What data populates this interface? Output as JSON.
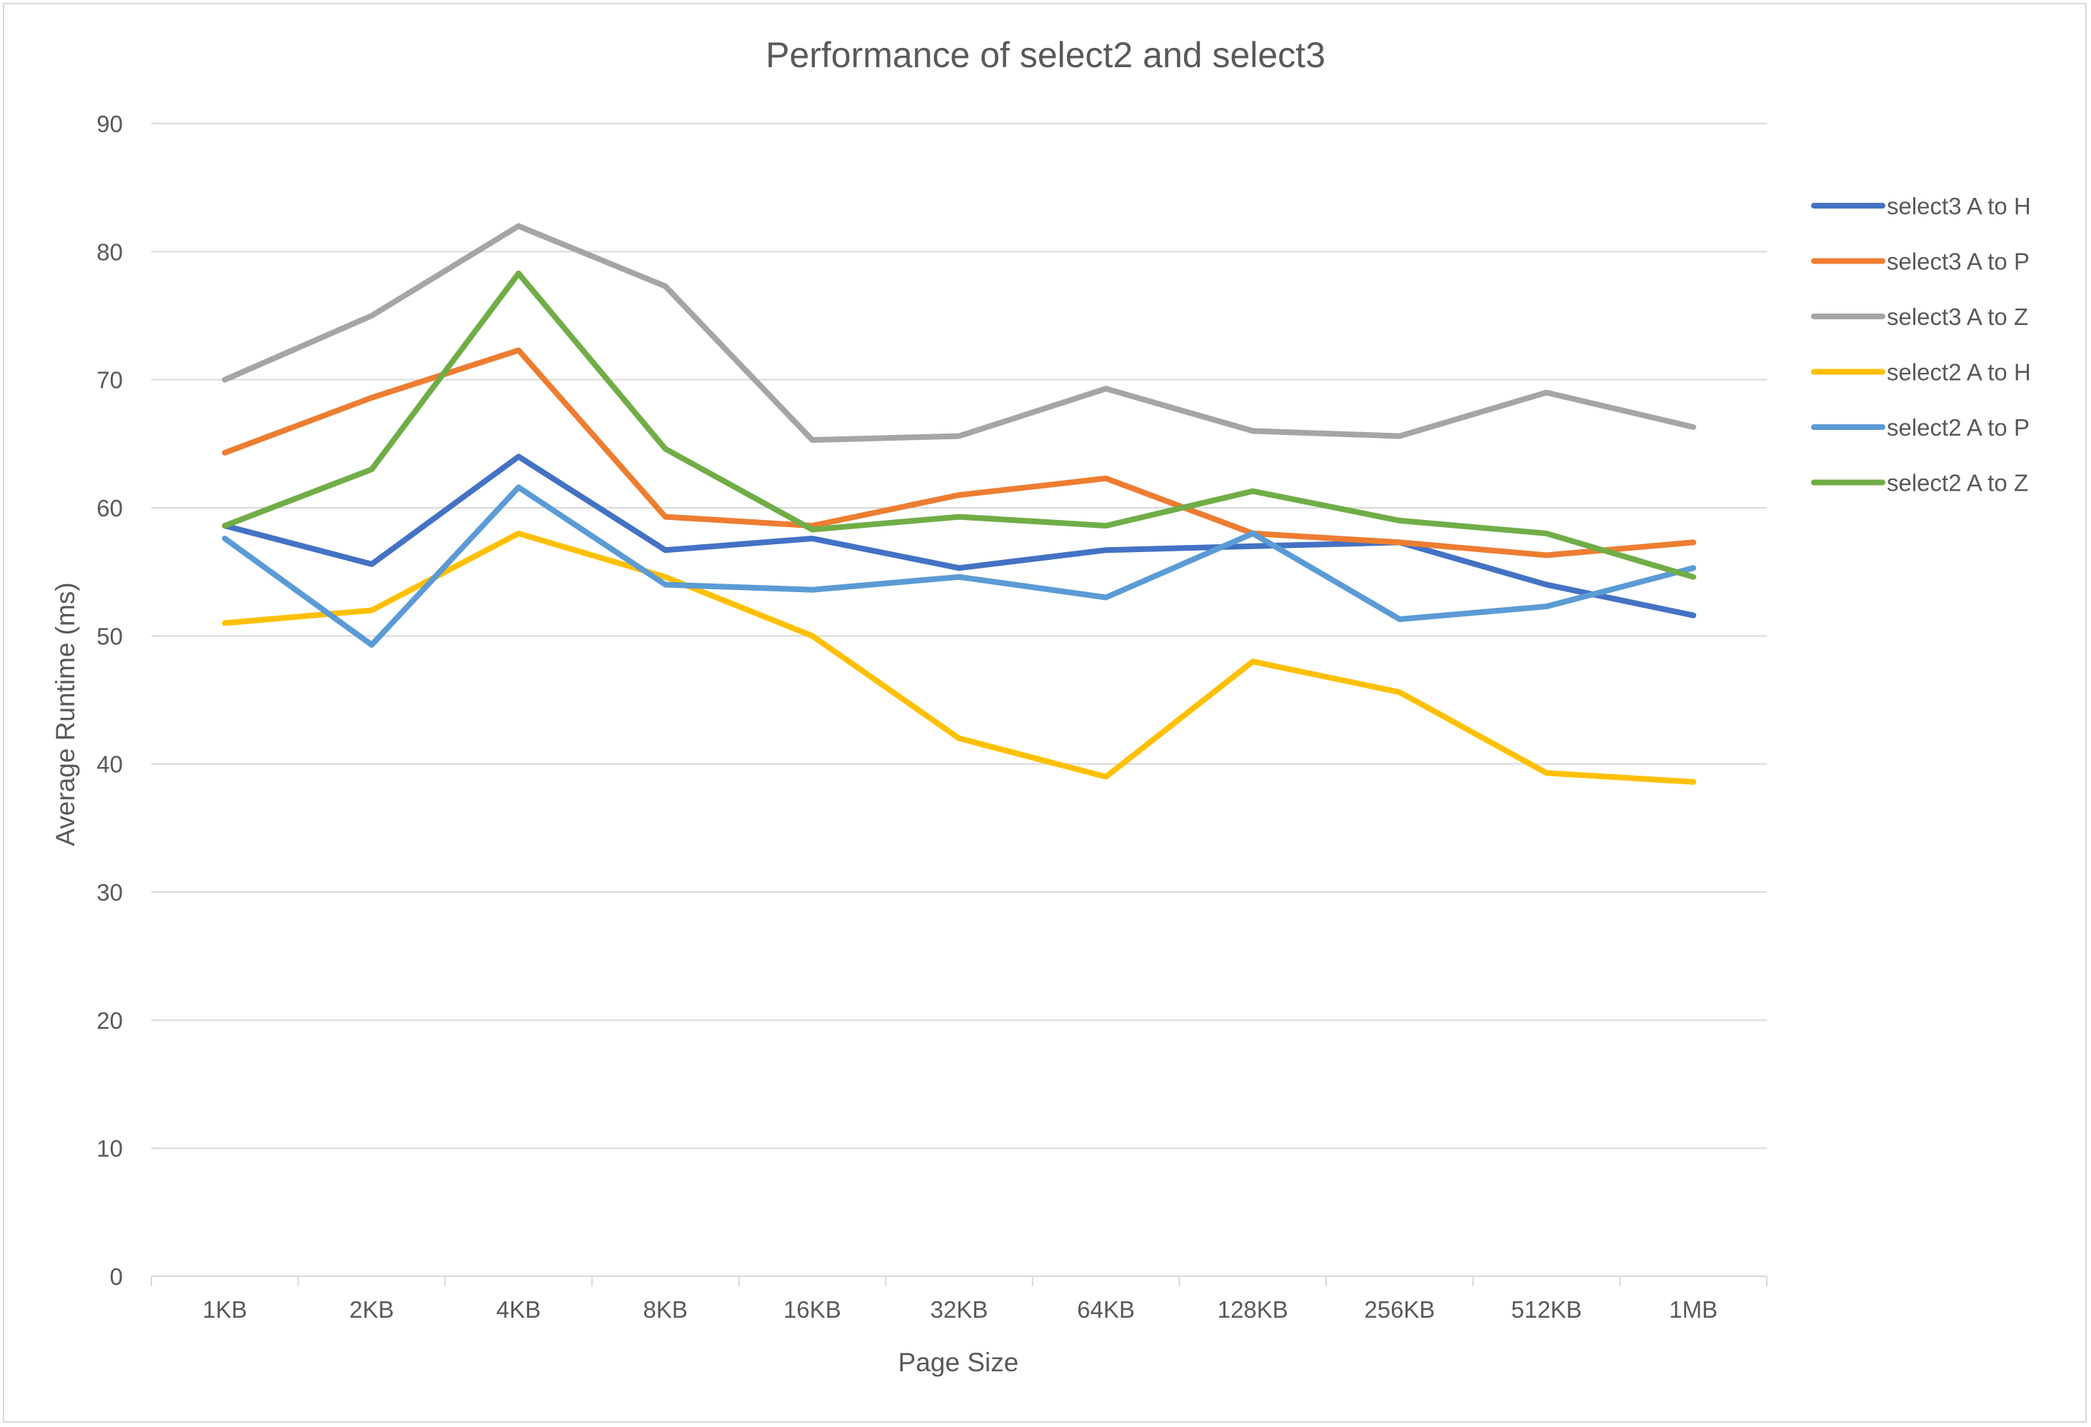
{
  "chart_data": {
    "type": "line",
    "title": "Performance of select2 and select3",
    "xlabel": "Page Size",
    "ylabel": "Average Runtime (ms)",
    "categories": [
      "1KB",
      "2KB",
      "4KB",
      "8KB",
      "16KB",
      "32KB",
      "64KB",
      "128KB",
      "256KB",
      "512KB",
      "1MB"
    ],
    "ylim": [
      0,
      90
    ],
    "yticks": [
      0,
      10,
      20,
      30,
      40,
      50,
      60,
      70,
      80,
      90
    ],
    "grid": true,
    "legend_position": "right",
    "series": [
      {
        "name": "select3 A to H",
        "color": "#4472C4",
        "values": [
          58.6,
          55.6,
          64.0,
          56.7,
          57.6,
          55.3,
          56.7,
          57.0,
          57.3,
          54.0,
          51.6
        ]
      },
      {
        "name": "select3 A to P",
        "color": "#ED7D31",
        "values": [
          64.3,
          68.6,
          72.3,
          59.3,
          58.6,
          61.0,
          62.3,
          58.0,
          57.3,
          56.3,
          57.3
        ]
      },
      {
        "name": "select3 A to Z",
        "color": "#A5A5A5",
        "values": [
          70.0,
          75.0,
          82.0,
          77.3,
          65.3,
          65.6,
          69.3,
          66.0,
          65.6,
          69.0,
          66.3
        ]
      },
      {
        "name": "select2 A to H",
        "color": "#FFC000",
        "values": [
          51.0,
          52.0,
          58.0,
          54.6,
          50.0,
          42.0,
          39.0,
          48.0,
          45.6,
          39.3,
          38.6
        ]
      },
      {
        "name": "select2 A to P",
        "color": "#5B9BD5",
        "values": [
          57.6,
          49.3,
          61.6,
          54.0,
          53.6,
          54.6,
          53.0,
          58.0,
          51.3,
          52.3,
          55.3
        ]
      },
      {
        "name": "select2 A to Z",
        "color": "#70AD47",
        "values": [
          58.6,
          63.0,
          78.3,
          64.6,
          58.3,
          59.3,
          58.6,
          61.3,
          59.0,
          58.0,
          54.6
        ]
      }
    ]
  }
}
